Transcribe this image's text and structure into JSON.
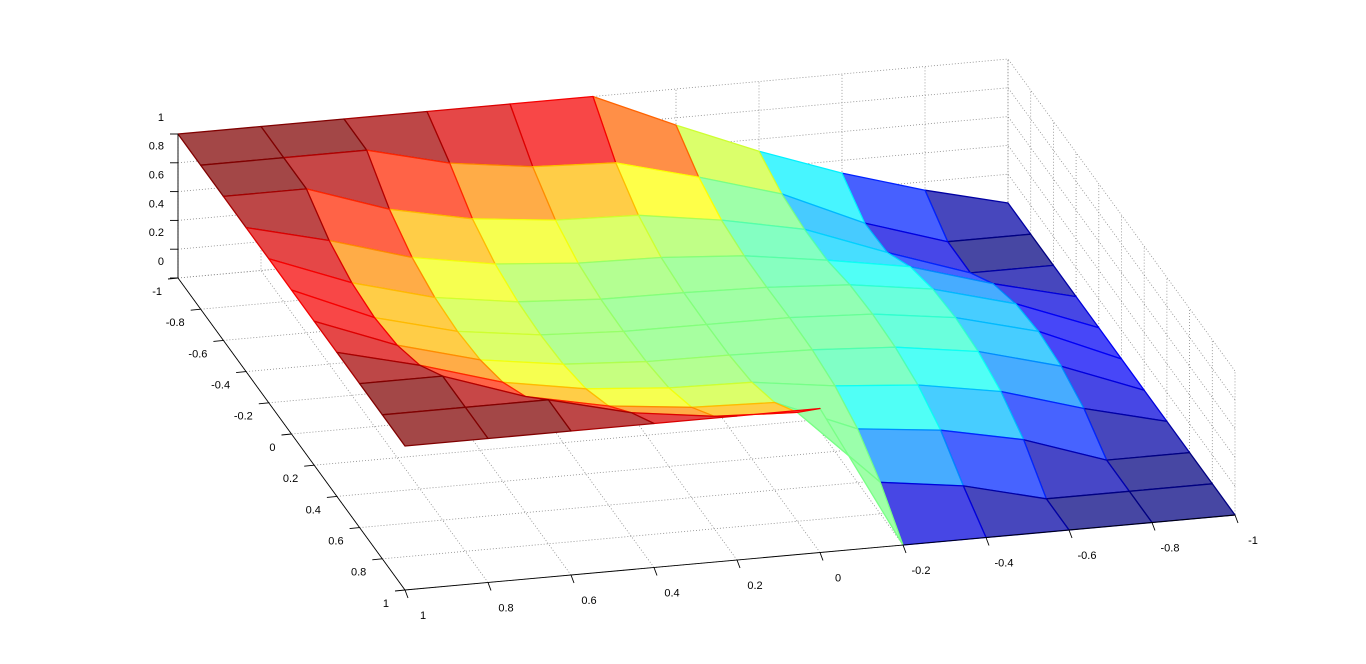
{
  "chart_data": {
    "type": "mesh",
    "x": [
      -1,
      -0.8,
      -0.6,
      -0.4,
      -0.2,
      0,
      0.2,
      0.4,
      0.6,
      0.8,
      1
    ],
    "y": [
      -1,
      -0.8,
      -0.6,
      -0.4,
      -0.2,
      0,
      0.2,
      0.4,
      0.6,
      0.8,
      1
    ],
    "z": [
      [
        0,
        0.141,
        0.312,
        0.516,
        0.749,
        1,
        1,
        1,
        1,
        1,
        1
      ],
      [
        0,
        0,
        0.181,
        0.436,
        0.605,
        0.756,
        0.781,
        0.858,
        1,
        1,
        1
      ],
      [
        0,
        0,
        0.194,
        0.407,
        0.523,
        0.608,
        0.627,
        0.688,
        0.806,
        1,
        1
      ],
      [
        0,
        0.142,
        0.312,
        0.409,
        0.492,
        0.532,
        0.545,
        0.591,
        0.688,
        0.858,
        1
      ],
      [
        0,
        0.219,
        0.373,
        0.455,
        0.489,
        0.504,
        0.511,
        0.545,
        0.627,
        0.781,
        1
      ],
      [
        0,
        0.244,
        0.392,
        0.468,
        0.496,
        0.5,
        0.504,
        0.532,
        0.608,
        0.756,
        1
      ],
      [
        0,
        0.219,
        0.373,
        0.455,
        0.489,
        0.504,
        0.511,
        0.545,
        0.627,
        0.781,
        1
      ],
      [
        0,
        0.142,
        0.312,
        0.409,
        0.455,
        0.532,
        0.545,
        0.591,
        0.688,
        0.858,
        1
      ],
      [
        0,
        0,
        0.194,
        0.312,
        0.373,
        0.608,
        0.627,
        0.688,
        0.806,
        1,
        1
      ],
      [
        0,
        0,
        0,
        0.142,
        0.219,
        0.756,
        0.781,
        0.858,
        1,
        1,
        1
      ],
      [
        0,
        0,
        0,
        0,
        0,
        1,
        1,
        1,
        1,
        1,
        1
      ]
    ],
    "xlim": [
      -1,
      1
    ],
    "ylim": [
      -1,
      1
    ],
    "zlim": [
      0,
      1
    ],
    "xticks": [
      -1,
      -0.8,
      -0.6,
      -0.4,
      -0.2,
      0,
      0.2,
      0.4,
      0.6,
      0.8,
      1
    ],
    "yticks": [
      -1,
      -0.8,
      -0.6,
      -0.4,
      -0.2,
      0,
      0.2,
      0.4,
      0.6,
      0.8,
      1
    ],
    "zticks": [
      0,
      0.2,
      0.4,
      0.6,
      0.8,
      1
    ],
    "grid": true,
    "colormap": "jet"
  }
}
